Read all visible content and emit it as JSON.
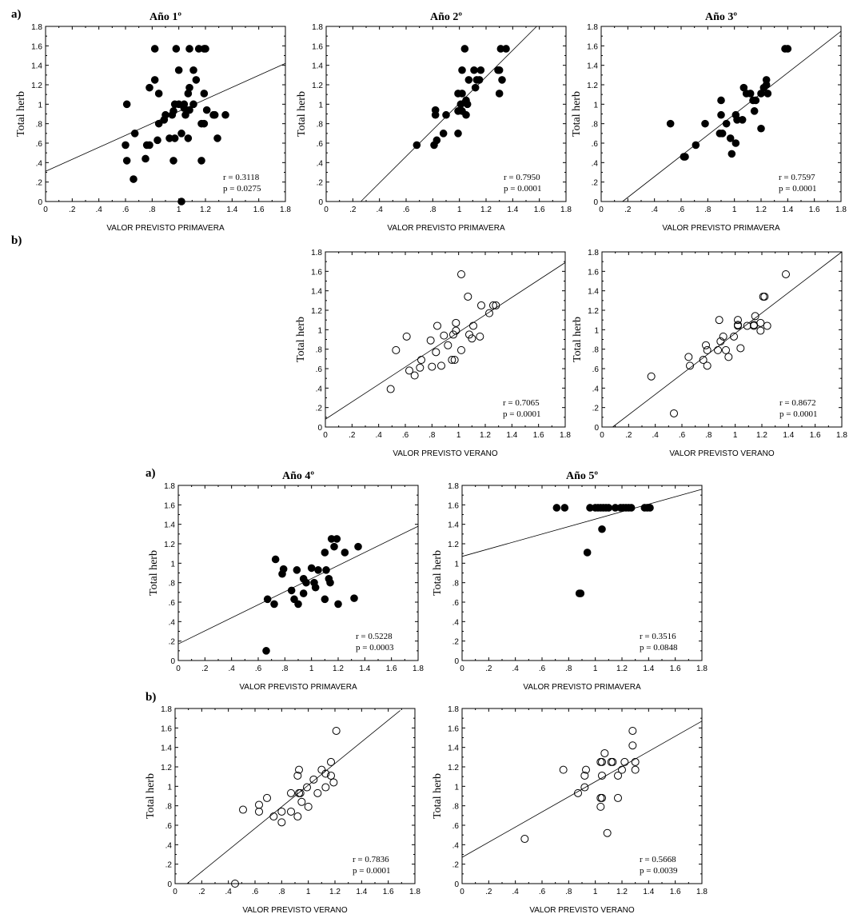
{
  "panel_labels": [
    "a)",
    "b)",
    "a)",
    "b)"
  ],
  "tick_labels": [
    "0",
    ".2",
    ".4",
    ".6",
    ".8",
    "1",
    "1.2",
    "1.4",
    "1.6",
    "1.8"
  ],
  "chart_data": [
    {
      "type": "scatter",
      "title": "Año 1º",
      "xlabel": "VALOR PREVISTO PRIMAVERA",
      "ylabel": "Total herb",
      "xlim": [
        0,
        1.8
      ],
      "ylim": [
        0,
        1.8
      ],
      "marker": "filled",
      "stats": {
        "r": "r = 0.3118",
        "p": "p = 0.0275"
      },
      "fit_line": [
        [
          0,
          0.31
        ],
        [
          1.8,
          1.42
        ]
      ],
      "points": [
        [
          0.82,
          1.57
        ],
        [
          0.98,
          1.57
        ],
        [
          1.08,
          1.57
        ],
        [
          1.15,
          1.57
        ],
        [
          1.19,
          1.57
        ],
        [
          1.2,
          1.57
        ],
        [
          1.0,
          1.35
        ],
        [
          1.11,
          1.35
        ],
        [
          0.82,
          1.25
        ],
        [
          1.13,
          1.25
        ],
        [
          0.78,
          1.17
        ],
        [
          1.08,
          1.17
        ],
        [
          0.85,
          1.11
        ],
        [
          1.07,
          1.11
        ],
        [
          1.19,
          1.11
        ],
        [
          0.61,
          1.0
        ],
        [
          0.97,
          1.0
        ],
        [
          1.0,
          1.0
        ],
        [
          1.04,
          1.0
        ],
        [
          1.11,
          1.0
        ],
        [
          1.04,
          0.96
        ],
        [
          0.96,
          0.93
        ],
        [
          1.08,
          0.94
        ],
        [
          1.21,
          0.94
        ],
        [
          0.9,
          0.89
        ],
        [
          0.95,
          0.89
        ],
        [
          1.05,
          0.89
        ],
        [
          1.26,
          0.89
        ],
        [
          1.27,
          0.89
        ],
        [
          1.35,
          0.89
        ],
        [
          0.89,
          0.84
        ],
        [
          0.85,
          0.8
        ],
        [
          1.17,
          0.8
        ],
        [
          1.19,
          0.8
        ],
        [
          1.02,
          0.7
        ],
        [
          0.67,
          0.7
        ],
        [
          0.93,
          0.65
        ],
        [
          0.97,
          0.65
        ],
        [
          1.07,
          0.65
        ],
        [
          1.29,
          0.65
        ],
        [
          0.84,
          0.63
        ],
        [
          0.6,
          0.58
        ],
        [
          0.76,
          0.58
        ],
        [
          0.78,
          0.58
        ],
        [
          0.61,
          0.42
        ],
        [
          0.75,
          0.44
        ],
        [
          0.96,
          0.42
        ],
        [
          1.17,
          0.42
        ],
        [
          0.66,
          0.23
        ],
        [
          1.02,
          0.0
        ]
      ]
    },
    {
      "type": "scatter",
      "title": "Año 2º",
      "xlabel": "VALOR PREVISTO PRIMAVERA",
      "ylabel": "Total herb",
      "xlim": [
        0,
        1.8
      ],
      "ylim": [
        0,
        1.8
      ],
      "marker": "filled",
      "stats": {
        "r": "r = 0.7950",
        "p": "p = 0.0001"
      },
      "fit_line": [
        [
          0.26,
          0
        ],
        [
          1.58,
          1.8
        ]
      ],
      "points": [
        [
          1.04,
          1.57
        ],
        [
          1.31,
          1.57
        ],
        [
          1.35,
          1.57
        ],
        [
          1.02,
          1.35
        ],
        [
          1.11,
          1.35
        ],
        [
          1.16,
          1.35
        ],
        [
          1.29,
          1.35
        ],
        [
          1.3,
          1.35
        ],
        [
          1.07,
          1.25
        ],
        [
          1.13,
          1.25
        ],
        [
          1.15,
          1.25
        ],
        [
          1.32,
          1.25
        ],
        [
          1.12,
          1.17
        ],
        [
          0.99,
          1.11
        ],
        [
          1.02,
          1.11
        ],
        [
          1.3,
          1.11
        ],
        [
          1.05,
          1.04
        ],
        [
          1.01,
          1.0
        ],
        [
          1.06,
          1.0
        ],
        [
          0.99,
          0.93
        ],
        [
          1.02,
          0.93
        ],
        [
          0.82,
          0.94
        ],
        [
          0.82,
          0.89
        ],
        [
          0.9,
          0.89
        ],
        [
          1.05,
          0.89
        ],
        [
          0.88,
          0.7
        ],
        [
          0.99,
          0.7
        ],
        [
          0.68,
          0.58
        ],
        [
          0.81,
          0.58
        ],
        [
          0.83,
          0.63
        ]
      ]
    },
    {
      "type": "scatter",
      "title": "Año 3º",
      "xlabel": "VALOR PREVISTO PRIMAVERA",
      "ylabel": "Total herb",
      "xlim": [
        0,
        1.8
      ],
      "ylim": [
        0,
        1.8
      ],
      "marker": "filled",
      "stats": {
        "r": "r = 0.7597",
        "p": "p = 0.0001"
      },
      "fit_line": [
        [
          0.16,
          0
        ],
        [
          1.8,
          1.75
        ]
      ],
      "points": [
        [
          1.38,
          1.57
        ],
        [
          1.4,
          1.57
        ],
        [
          1.24,
          1.25
        ],
        [
          1.24,
          1.2
        ],
        [
          1.22,
          1.17
        ],
        [
          1.07,
          1.17
        ],
        [
          1.09,
          1.11
        ],
        [
          1.12,
          1.11
        ],
        [
          1.2,
          1.11
        ],
        [
          1.25,
          1.11
        ],
        [
          1.14,
          1.04
        ],
        [
          1.16,
          1.04
        ],
        [
          0.9,
          1.04
        ],
        [
          1.15,
          0.93
        ],
        [
          0.9,
          0.89
        ],
        [
          1.01,
          0.89
        ],
        [
          1.02,
          0.84
        ],
        [
          1.06,
          0.84
        ],
        [
          0.52,
          0.8
        ],
        [
          0.78,
          0.8
        ],
        [
          0.94,
          0.8
        ],
        [
          1.2,
          0.75
        ],
        [
          0.89,
          0.7
        ],
        [
          0.91,
          0.7
        ],
        [
          0.97,
          0.65
        ],
        [
          1.01,
          0.6
        ],
        [
          0.98,
          0.49
        ],
        [
          0.71,
          0.58
        ],
        [
          0.62,
          0.46
        ],
        [
          0.63,
          0.46
        ]
      ]
    },
    {
      "type": "scatter",
      "title": "",
      "xlabel": "VALOR PREVISTO VERANO",
      "ylabel": "Total herb",
      "xlim": [
        0,
        1.8
      ],
      "ylim": [
        0,
        1.8
      ],
      "marker": "open",
      "stats": {
        "r": "r = 0.7065",
        "p": "p = 0.0001"
      },
      "fit_line": [
        [
          0,
          0.08
        ],
        [
          1.8,
          1.69
        ]
      ],
      "points": [
        [
          1.02,
          1.57
        ],
        [
          1.07,
          1.34
        ],
        [
          1.17,
          1.25
        ],
        [
          1.26,
          1.25
        ],
        [
          1.28,
          1.25
        ],
        [
          1.23,
          1.17
        ],
        [
          0.98,
          1.07
        ],
        [
          0.84,
          1.04
        ],
        [
          1.11,
          1.04
        ],
        [
          0.98,
          0.99
        ],
        [
          0.61,
          0.93
        ],
        [
          0.89,
          0.94
        ],
        [
          0.96,
          0.95
        ],
        [
          1.08,
          0.95
        ],
        [
          1.16,
          0.93
        ],
        [
          1.1,
          0.91
        ],
        [
          0.79,
          0.89
        ],
        [
          0.92,
          0.84
        ],
        [
          0.53,
          0.79
        ],
        [
          0.83,
          0.77
        ],
        [
          1.02,
          0.79
        ],
        [
          0.72,
          0.69
        ],
        [
          0.95,
          0.69
        ],
        [
          0.97,
          0.69
        ],
        [
          0.71,
          0.61
        ],
        [
          0.8,
          0.62
        ],
        [
          0.87,
          0.63
        ],
        [
          0.63,
          0.58
        ],
        [
          0.67,
          0.53
        ],
        [
          0.49,
          0.39
        ]
      ]
    },
    {
      "type": "scatter",
      "title": "",
      "xlabel": "VALOR PREVISTO VERANO",
      "ylabel": "Total herb",
      "xlim": [
        0,
        1.8
      ],
      "ylim": [
        0,
        1.8
      ],
      "marker": "open",
      "stats": {
        "r": "r = 0.8672",
        "p": "p = 0.0001"
      },
      "fit_line": [
        [
          0.08,
          0
        ],
        [
          1.8,
          1.8
        ]
      ],
      "points": [
        [
          1.38,
          1.57
        ],
        [
          1.21,
          1.34
        ],
        [
          1.22,
          1.34
        ],
        [
          1.15,
          1.14
        ],
        [
          0.88,
          1.1
        ],
        [
          1.02,
          1.1
        ],
        [
          1.02,
          1.04
        ],
        [
          1.02,
          1.05
        ],
        [
          1.09,
          1.04
        ],
        [
          1.14,
          1.05
        ],
        [
          1.14,
          1.04
        ],
        [
          1.19,
          1.07
        ],
        [
          1.24,
          1.04
        ],
        [
          1.19,
          0.99
        ],
        [
          0.91,
          0.93
        ],
        [
          0.99,
          0.93
        ],
        [
          0.89,
          0.88
        ],
        [
          0.78,
          0.84
        ],
        [
          0.79,
          0.79
        ],
        [
          0.87,
          0.79
        ],
        [
          0.93,
          0.79
        ],
        [
          1.04,
          0.81
        ],
        [
          0.65,
          0.72
        ],
        [
          0.95,
          0.72
        ],
        [
          0.76,
          0.69
        ],
        [
          0.66,
          0.63
        ],
        [
          0.79,
          0.63
        ],
        [
          0.37,
          0.52
        ],
        [
          0.54,
          0.14
        ]
      ]
    },
    {
      "type": "scatter",
      "title": "Año 4º",
      "xlabel": "VALOR PREVISTO PRIMAVERA",
      "ylabel": "Total herb",
      "xlim": [
        0,
        1.8
      ],
      "ylim": [
        0,
        1.8
      ],
      "marker": "filled",
      "stats": {
        "r": "r = 0.5228",
        "p": "p = 0.0003"
      },
      "fit_line": [
        [
          0,
          0.17
        ],
        [
          1.8,
          1.38
        ]
      ],
      "points": [
        [
          1.15,
          1.25
        ],
        [
          1.19,
          1.25
        ],
        [
          1.17,
          1.17
        ],
        [
          1.35,
          1.17
        ],
        [
          1.1,
          1.11
        ],
        [
          1.25,
          1.11
        ],
        [
          0.73,
          1.04
        ],
        [
          0.79,
          0.94
        ],
        [
          0.89,
          0.93
        ],
        [
          1.0,
          0.95
        ],
        [
          1.05,
          0.93
        ],
        [
          1.11,
          0.93
        ],
        [
          0.78,
          0.89
        ],
        [
          0.94,
          0.84
        ],
        [
          1.13,
          0.84
        ],
        [
          0.96,
          0.8
        ],
        [
          1.02,
          0.8
        ],
        [
          1.14,
          0.8
        ],
        [
          1.03,
          0.75
        ],
        [
          0.85,
          0.72
        ],
        [
          0.94,
          0.69
        ],
        [
          0.67,
          0.63
        ],
        [
          0.87,
          0.63
        ],
        [
          1.1,
          0.63
        ],
        [
          1.32,
          0.64
        ],
        [
          0.72,
          0.58
        ],
        [
          0.9,
          0.58
        ],
        [
          1.2,
          0.58
        ],
        [
          0.66,
          0.1
        ]
      ]
    },
    {
      "type": "scatter",
      "title": "Año 5º",
      "xlabel": "VALOR PREVISTO PRIMAVERA",
      "ylabel": "Total herb",
      "xlim": [
        0,
        1.8
      ],
      "ylim": [
        0,
        1.8
      ],
      "marker": "filled",
      "stats": {
        "r": "r = 0.3516",
        "p": "p = 0.0848"
      },
      "fit_line": [
        [
          0,
          1.07
        ],
        [
          1.8,
          1.76
        ]
      ],
      "points": [
        [
          0.71,
          1.57
        ],
        [
          0.77,
          1.57
        ],
        [
          0.96,
          1.57
        ],
        [
          1.0,
          1.57
        ],
        [
          1.02,
          1.57
        ],
        [
          1.04,
          1.57
        ],
        [
          1.06,
          1.57
        ],
        [
          1.08,
          1.57
        ],
        [
          1.1,
          1.57
        ],
        [
          1.15,
          1.57
        ],
        [
          1.19,
          1.57
        ],
        [
          1.21,
          1.57
        ],
        [
          1.23,
          1.57
        ],
        [
          1.25,
          1.57
        ],
        [
          1.27,
          1.57
        ],
        [
          1.37,
          1.57
        ],
        [
          1.39,
          1.57
        ],
        [
          1.41,
          1.57
        ],
        [
          1.05,
          1.35
        ],
        [
          0.94,
          1.11
        ],
        [
          0.88,
          0.69
        ],
        [
          0.89,
          0.69
        ]
      ]
    },
    {
      "type": "scatter",
      "title": "",
      "xlabel": "VALOR PREVISTO VERANO",
      "ylabel": "Total herb",
      "xlim": [
        0,
        1.8
      ],
      "ylim": [
        0,
        1.8
      ],
      "marker": "open",
      "stats": {
        "r": "r = 0.7836",
        "p": "p = 0.0001"
      },
      "fit_line": [
        [
          0.09,
          0
        ],
        [
          1.69,
          1.78
        ]
      ],
      "points": [
        [
          1.21,
          1.57
        ],
        [
          1.17,
          1.25
        ],
        [
          0.93,
          1.17
        ],
        [
          1.1,
          1.17
        ],
        [
          1.13,
          1.13
        ],
        [
          0.92,
          1.11
        ],
        [
          1.17,
          1.11
        ],
        [
          1.04,
          1.07
        ],
        [
          1.19,
          1.04
        ],
        [
          0.99,
          0.99
        ],
        [
          1.13,
          0.99
        ],
        [
          0.87,
          0.93
        ],
        [
          0.94,
          0.93
        ],
        [
          0.93,
          0.93
        ],
        [
          1.07,
          0.93
        ],
        [
          0.69,
          0.88
        ],
        [
          0.63,
          0.81
        ],
        [
          0.95,
          0.84
        ],
        [
          0.63,
          0.74
        ],
        [
          0.8,
          0.74
        ],
        [
          0.87,
          0.74
        ],
        [
          1.0,
          0.79
        ],
        [
          0.51,
          0.76
        ],
        [
          0.74,
          0.69
        ],
        [
          0.92,
          0.69
        ],
        [
          0.8,
          0.63
        ],
        [
          0.45,
          0.0
        ]
      ]
    },
    {
      "type": "scatter",
      "title": "",
      "xlabel": "VALOR PREVISTO VERANO",
      "ylabel": "Total herb",
      "xlim": [
        0,
        1.8
      ],
      "ylim": [
        0,
        1.8
      ],
      "marker": "open",
      "stats": {
        "r": "r = 0.5668",
        "p": "p = 0.0039"
      },
      "fit_line": [
        [
          0,
          0.27
        ],
        [
          1.8,
          1.67
        ]
      ],
      "points": [
        [
          1.28,
          1.57
        ],
        [
          1.28,
          1.42
        ],
        [
          1.07,
          1.34
        ],
        [
          1.04,
          1.25
        ],
        [
          1.05,
          1.25
        ],
        [
          1.12,
          1.25
        ],
        [
          1.13,
          1.25
        ],
        [
          1.22,
          1.25
        ],
        [
          1.3,
          1.25
        ],
        [
          0.76,
          1.17
        ],
        [
          0.93,
          1.17
        ],
        [
          1.2,
          1.17
        ],
        [
          1.3,
          1.17
        ],
        [
          0.92,
          1.11
        ],
        [
          1.05,
          1.11
        ],
        [
          1.17,
          1.11
        ],
        [
          0.92,
          0.99
        ],
        [
          0.87,
          0.93
        ],
        [
          1.04,
          0.88
        ],
        [
          1.05,
          0.88
        ],
        [
          1.17,
          0.88
        ],
        [
          1.04,
          0.79
        ],
        [
          1.09,
          0.52
        ],
        [
          0.47,
          0.46
        ]
      ]
    }
  ]
}
